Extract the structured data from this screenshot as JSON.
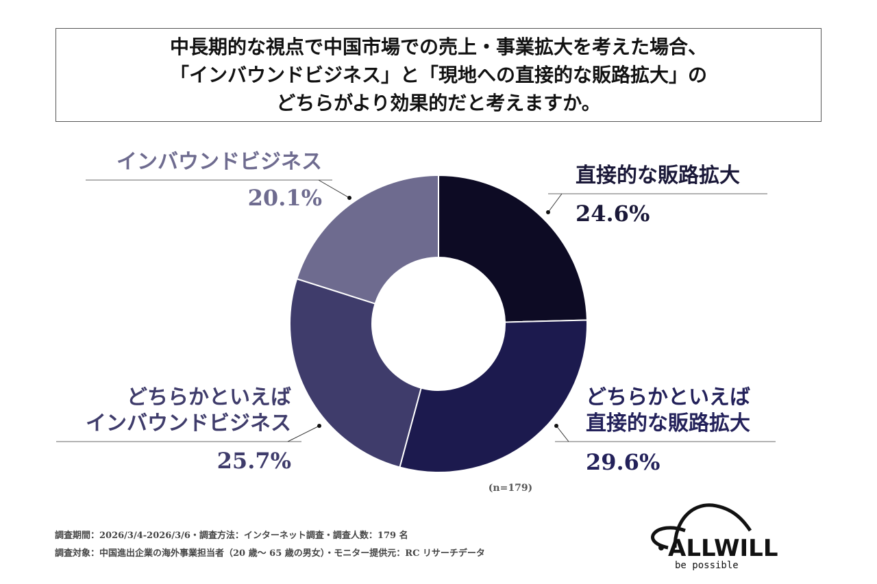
{
  "chart_data": {
    "type": "donut",
    "title": "中長期的な視点で中国市場での売上・事業拡大を考えた場合、\n「インバウンドビジネス」と「現地への直接的な販路拡大」の\nどちらがより効果的だと考えますか。",
    "categories": [
      "直接的な販路拡大",
      "どちらかといえば\n直接的な販路拡大",
      "どちらかといえば\nインバウンドビジネス",
      "インバウンドビジネス"
    ],
    "values": [
      24.6,
      29.6,
      25.7,
      20.1
    ],
    "value_labels": [
      "24.6%",
      "29.6%",
      "25.7%",
      "20.1%"
    ],
    "colors": [
      "#0d0b24",
      "#1c1a4e",
      "#3f3c6b",
      "#6e6b8f"
    ],
    "note": "(n=179)"
  },
  "footer": [
    "調査期間：2026/3/4-2026/3/6・調査方法：インターネット調査・調査人数：179 名",
    "調査対象：中国進出企業の海外事業担当者（20 歳～ 65 歳の男女）・モニター提供元：RC リサーチデータ"
  ],
  "logo": {
    "name": "ALLWILL",
    "tagline": "be possible"
  }
}
